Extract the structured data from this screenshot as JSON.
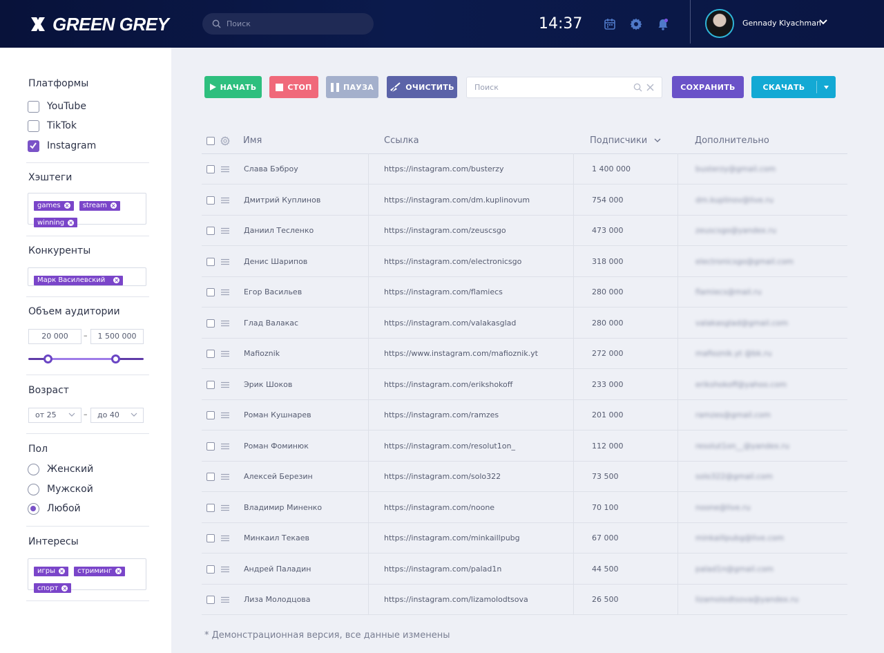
{
  "header": {
    "logo_text": "GREEN GREY",
    "search_placeholder": "Поиск",
    "time": "14:37",
    "user_name": "Gennady Klyachman"
  },
  "sidebar": {
    "platforms": {
      "title": "Платформы",
      "items": [
        {
          "label": "YouTube",
          "checked": false
        },
        {
          "label": "TikTok",
          "checked": false
        },
        {
          "label": "Instagram",
          "checked": true
        }
      ]
    },
    "hashtags": {
      "title": "Хэштеги",
      "tags": [
        "games",
        "stream",
        "winning"
      ]
    },
    "competitors": {
      "title": "Конкуренты",
      "tags": [
        "Марк Василевский"
      ]
    },
    "audience": {
      "title": "Объем аудитории",
      "min": "20 000",
      "max": "1 500 000",
      "dash": "–",
      "range_low_fraction": 0.17,
      "range_high_fraction": 0.76
    },
    "age": {
      "title": "Возраст",
      "from": "от 25",
      "to": "до 40",
      "dash": "–"
    },
    "gender": {
      "title": "Пол",
      "options": [
        {
          "label": "Женский",
          "checked": false
        },
        {
          "label": "Мужской",
          "checked": false
        },
        {
          "label": "Любой",
          "checked": true
        }
      ]
    },
    "interests": {
      "title": "Интересы",
      "tags": [
        "игры",
        "стриминг",
        "спорт"
      ]
    }
  },
  "toolbar": {
    "start_label": "НАЧАТЬ",
    "stop_label": "СТОП",
    "pause_label": "ПАУЗА",
    "clear_label": "ОЧИСТИТЬ",
    "search_placeholder": "Поиск",
    "save_label": "СОХРАНИТЬ",
    "download_label": "СКАЧАТЬ",
    "colors": {
      "start": "#2ebf7e",
      "stop": "#f0697a",
      "pause": "#a4b0cc",
      "clear": "#5b63a8",
      "save": "#6a52c8",
      "download": "#13a9d4"
    }
  },
  "table": {
    "columns": {
      "name": "Имя",
      "link": "Ссылка",
      "subscribers": "Подписчики",
      "extra": "Дополнительно"
    },
    "rows": [
      {
        "name": "Слава Бэброу",
        "link": "https://instagram.com/busterzy",
        "subs": "1 400 000",
        "extra": "busterzy@gmail.com"
      },
      {
        "name": "Дмитрий Куплинов",
        "link": "https://instagram.com/dm.kuplinovum",
        "subs": "754 000",
        "extra": "dm.kuplinov@live.ru"
      },
      {
        "name": "Даниил Тесленко",
        "link": "https://instagram.com/zeuscsgo",
        "subs": "473 000",
        "extra": "zeuscsgo@yandex.ru"
      },
      {
        "name": "Денис Шарипов",
        "link": "https://instagram.com/electronicsgo",
        "subs": "318 000",
        "extra": "electronicsgo@gmail.com"
      },
      {
        "name": "Егор Васильев",
        "link": "https://instagram.com/flamiecs",
        "subs": "280 000",
        "extra": "flamiecs@mail.ru"
      },
      {
        "name": "Глад Валакас",
        "link": "https://instagram.com/valakasglad",
        "subs": "280 000",
        "extra": "valakasglad@gmail.com"
      },
      {
        "name": "Mafioznik",
        "link": "https://www.instagram.com/mafioznik.yt",
        "subs": "272 000",
        "extra": "mafioznik.yt @bk.ru"
      },
      {
        "name": "Эрик Шоков",
        "link": "https://instagram.com/erikshokoff",
        "subs": "233 000",
        "extra": "erikshokoff@yahoo.com"
      },
      {
        "name": "Роман Кушнарев",
        "link": "https://instagram.com/ramzes",
        "subs": "201 000",
        "extra": "ramzes@gmail.com"
      },
      {
        "name": "Роман Фоминюк",
        "link": "https://instagram.com/resolut1on_",
        "subs": "112 000",
        "extra": "resolut1on__@yandex.ru"
      },
      {
        "name": "Алексей Березин",
        "link": "https://instagram.com/solo322",
        "subs": "73 500",
        "extra": "solo322@gmail.com"
      },
      {
        "name": "Владимир Миненко",
        "link": "https://instagram.com/noone",
        "subs": "70 100",
        "extra": "noone@live.ru"
      },
      {
        "name": "Минкаил Текаев",
        "link": "https://instagram.com/minkaillpubg",
        "subs": "67 000",
        "extra": "minkaillpubg@live.com"
      },
      {
        "name": "Андрей Паладин",
        "link": "https://instagram.com/palad1n",
        "subs": "44 500",
        "extra": "palad1n@gmail.com"
      },
      {
        "name": "Лиза Молодцова",
        "link": "https://instagram.com/lizamolodtsova",
        "subs": "26 500",
        "extra": "lizamolodtsova@yandex.ru"
      }
    ]
  },
  "footnote": "* Демонстрационная версия, все данные изменены"
}
